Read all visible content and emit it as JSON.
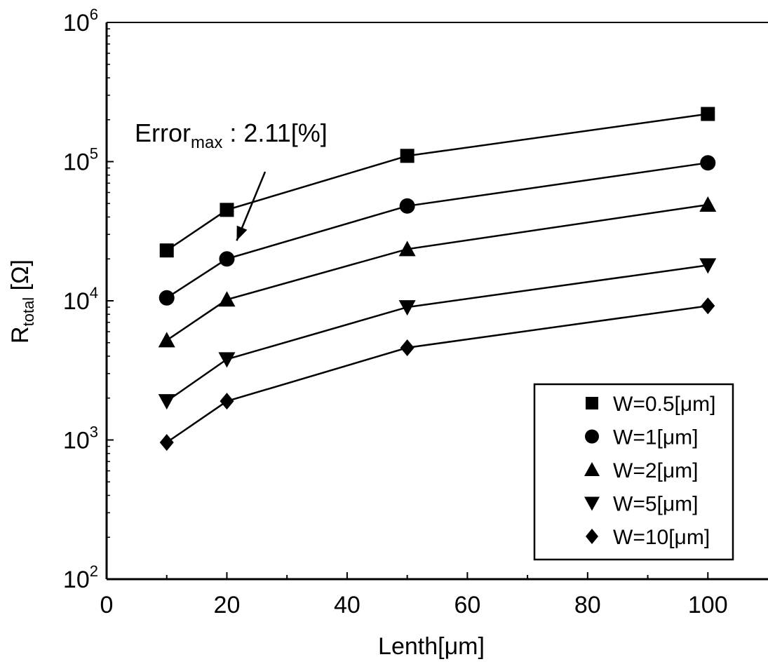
{
  "chart_data": {
    "type": "line",
    "xlabel": "Lenth[μm]",
    "ylabel_main": "R",
    "ylabel_sub": "total",
    "ylabel_unit": " [Ω]",
    "x_scale": "linear",
    "y_scale": "log",
    "xlim": [
      0,
      110
    ],
    "ylim": [
      100,
      1000000
    ],
    "x_ticks": [
      0,
      20,
      40,
      60,
      80,
      100
    ],
    "x_tick_labels": [
      "0",
      "20",
      "40",
      "60",
      "80",
      "100"
    ],
    "y_ticks": [
      100,
      1000,
      10000,
      100000,
      1000000
    ],
    "y_tick_base": [
      "10",
      "10",
      "10",
      "10",
      "10"
    ],
    "y_tick_exp": [
      "2",
      "3",
      "4",
      "5",
      "6"
    ],
    "grid": false,
    "legend_position": "bottom-right",
    "annotation": {
      "main": "Error",
      "sub": "max",
      "rest": " : 2.11[%]",
      "points_to": {
        "x": 20,
        "y": 20000
      }
    },
    "x": [
      10,
      20,
      50,
      100
    ],
    "series": [
      {
        "name": "W=0.5[μm]",
        "marker": "square",
        "values": [
          23000,
          45000,
          110000,
          220000
        ]
      },
      {
        "name": "W=1[μm]",
        "marker": "circle",
        "values": [
          10500,
          20000,
          48000,
          98000
        ]
      },
      {
        "name": "W=2[μm]",
        "marker": "triangle-up",
        "values": [
          5200,
          10200,
          23500,
          49000
        ]
      },
      {
        "name": "W=5[μm]",
        "marker": "triangle-down",
        "values": [
          1900,
          3800,
          9000,
          18000
        ]
      },
      {
        "name": "W=10[μm]",
        "marker": "diamond",
        "values": [
          960,
          1900,
          4600,
          9200
        ]
      }
    ]
  }
}
